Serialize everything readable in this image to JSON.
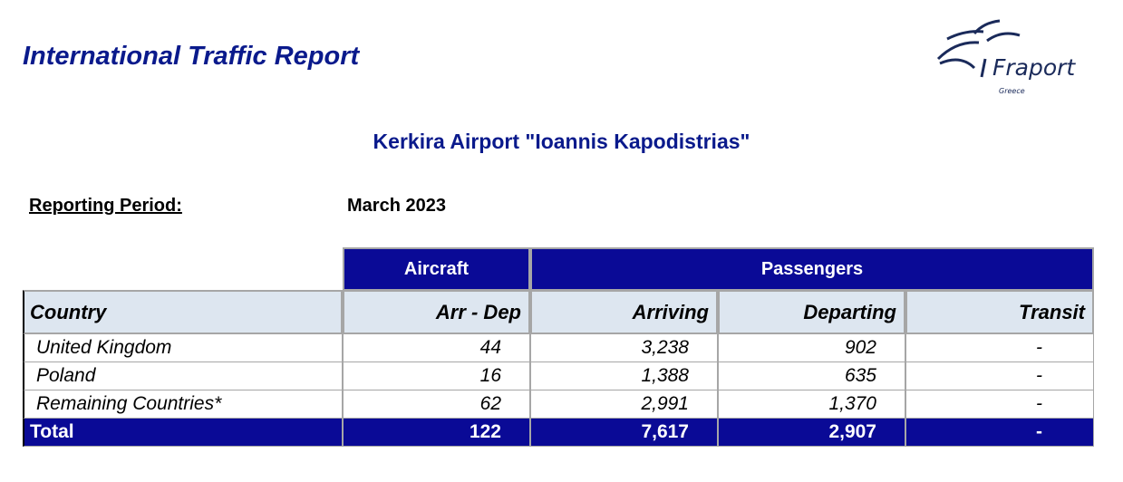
{
  "header": {
    "title": "International Traffic Report",
    "logo": {
      "name": "Fraport",
      "region": "Greece"
    }
  },
  "subtitle": "Kerkira Airport \"Ioannis Kapodistrias\"",
  "reporting_period": {
    "label": "Reporting Period:",
    "value": "March 2023"
  },
  "table": {
    "group_headers": [
      "Aircraft",
      "Passengers"
    ],
    "columns": [
      "Country",
      "Arr - Dep",
      "Arriving",
      "Departing",
      "Transit"
    ],
    "rows": [
      [
        "United Kingdom",
        "44",
        "3,238",
        "902",
        "-"
      ],
      [
        "Poland",
        "16",
        "1,388",
        "635",
        "-"
      ],
      [
        "Remaining Countries*",
        "62",
        "2,991",
        "1,370",
        "-"
      ]
    ],
    "total": [
      "Total",
      "122",
      "7,617",
      "2,907",
      "-"
    ]
  }
}
